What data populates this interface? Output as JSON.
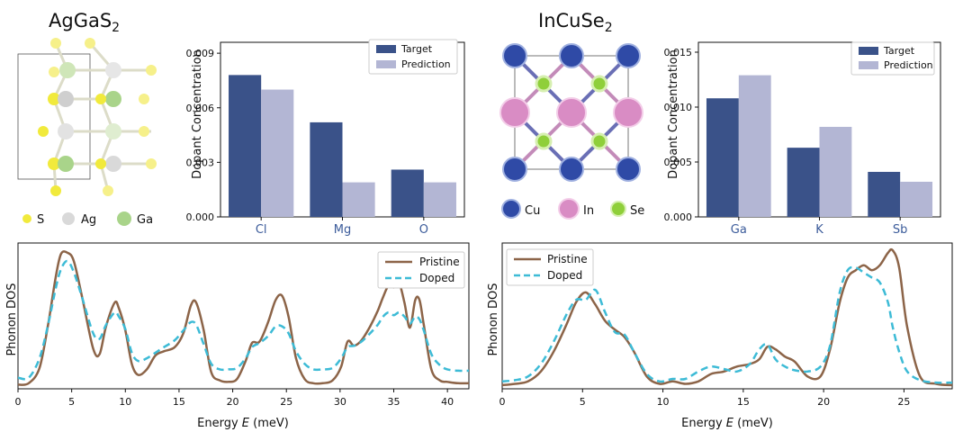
{
  "colors": {
    "target": "#3a5289",
    "prediction": "#b3b6d4",
    "pristine": "#8c6448",
    "doped": "#3dbbd6",
    "category_text": "#3b5b9a",
    "atom_S": "#f1ea3c",
    "atom_Ag": "#d9d9d9",
    "atom_Ga": "#a9d48a",
    "atom_Cu": "#2f4aa6",
    "atom_In": "#d98cc4",
    "atom_Se": "#8fcf3a"
  },
  "structures": [
    {
      "title": "AgGaS",
      "title_sub": "2",
      "legend": [
        {
          "label": "S",
          "icon": "sulfur-atom-icon",
          "color": "#f1ea3c"
        },
        {
          "label": "Ag",
          "icon": "silver-atom-icon",
          "color": "#d9d9d9"
        },
        {
          "label": "Ga",
          "icon": "gallium-atom-icon",
          "color": "#a9d48a"
        }
      ]
    },
    {
      "title": "InCuSe",
      "title_sub": "2",
      "legend": [
        {
          "label": "Cu",
          "icon": "copper-atom-icon",
          "color": "#2f4aa6"
        },
        {
          "label": "In",
          "icon": "indium-atom-icon",
          "color": "#d98cc4"
        },
        {
          "label": "Se",
          "icon": "selenium-atom-icon",
          "color": "#8fcf3a"
        }
      ]
    }
  ],
  "chart_data": [
    {
      "type": "bar",
      "categories": [
        "Cl",
        "Mg",
        "O"
      ],
      "series": [
        {
          "name": "Target",
          "values": [
            0.0078,
            0.0052,
            0.0026
          ]
        },
        {
          "name": "Prediction",
          "values": [
            0.007,
            0.0019,
            0.0019
          ]
        }
      ],
      "ylabel": "Dopant Concentration",
      "ylim": [
        0,
        0.0096
      ],
      "yticks": [
        0,
        0.003,
        0.006,
        0.009
      ],
      "ytick_labels": [
        "0.000",
        "0.003",
        "0.006",
        "0.009"
      ],
      "legend_placement": "top-right"
    },
    {
      "type": "bar",
      "categories": [
        "Ga",
        "K",
        "Sb"
      ],
      "series": [
        {
          "name": "Target",
          "values": [
            0.0108,
            0.0063,
            0.0041
          ]
        },
        {
          "name": "Prediction",
          "values": [
            0.0129,
            0.0082,
            0.0032
          ]
        }
      ],
      "ylabel": "Dopant Concentration",
      "ylim": [
        0,
        0.0159
      ],
      "yticks": [
        0,
        0.005,
        0.01,
        0.015
      ],
      "ytick_labels": [
        "0.000",
        "0.005",
        "0.010",
        "0.015"
      ],
      "legend_placement": "top-right"
    },
    {
      "type": "line",
      "xlabel": "Energy E (meV)",
      "xlabel_parts": [
        "Energy ",
        "E",
        " (meV)"
      ],
      "ylabel": "Phonon DOS",
      "xlim": [
        0,
        42
      ],
      "ylim": [
        0,
        1
      ],
      "xticks": [
        0,
        5,
        10,
        15,
        20,
        25,
        30,
        35,
        40
      ],
      "legend_placement": "top-right",
      "series": [
        {
          "name": "Pristine",
          "x": [
            0,
            1,
            2,
            2.8,
            3.5,
            4,
            4.6,
            5.2,
            6,
            7,
            7.6,
            8.2,
            9,
            9.4,
            10,
            10.6,
            11.2,
            12,
            12.8,
            13.6,
            14.6,
            15.4,
            16.1,
            16.6,
            17.3,
            18,
            18.8,
            19.6,
            20.4,
            21.2,
            21.8,
            22.5,
            23.3,
            24,
            24.6,
            25.2,
            25.9,
            26.7,
            27.5,
            28.4,
            29.3,
            30.1,
            30.7,
            31.3,
            32,
            32.8,
            33.5,
            34,
            34.5,
            35,
            35.5,
            36,
            36.5,
            37,
            37.4,
            37.8,
            38.5,
            39.3,
            40,
            41,
            42
          ],
          "y": [
            0.03,
            0.04,
            0.15,
            0.46,
            0.8,
            0.97,
            0.98,
            0.92,
            0.65,
            0.29,
            0.25,
            0.45,
            0.62,
            0.58,
            0.42,
            0.18,
            0.1,
            0.14,
            0.24,
            0.27,
            0.3,
            0.4,
            0.6,
            0.62,
            0.42,
            0.12,
            0.06,
            0.05,
            0.07,
            0.2,
            0.33,
            0.34,
            0.48,
            0.64,
            0.67,
            0.52,
            0.22,
            0.07,
            0.04,
            0.04,
            0.06,
            0.16,
            0.34,
            0.31,
            0.35,
            0.45,
            0.56,
            0.66,
            0.74,
            0.73,
            0.76,
            0.62,
            0.44,
            0.64,
            0.64,
            0.46,
            0.14,
            0.06,
            0.05,
            0.04,
            0.04
          ]
        },
        {
          "name": "Doped",
          "x": [
            0,
            1,
            2,
            2.8,
            3.5,
            4,
            4.6,
            5.2,
            6,
            7,
            7.6,
            8.2,
            9,
            9.4,
            10,
            10.6,
            11.2,
            12,
            12.8,
            13.6,
            14.6,
            15.4,
            16.1,
            16.6,
            17.3,
            18,
            18.8,
            19.6,
            20.4,
            21.2,
            21.8,
            22.5,
            23.3,
            24,
            24.6,
            25.2,
            25.9,
            26.7,
            27.5,
            28.4,
            29.3,
            30.1,
            30.7,
            31.3,
            32,
            32.8,
            33.5,
            34,
            34.5,
            35,
            35.5,
            36,
            36.5,
            37,
            37.4,
            37.8,
            38.5,
            39.3,
            40,
            41,
            42
          ],
          "y": [
            0.08,
            0.08,
            0.22,
            0.46,
            0.72,
            0.86,
            0.92,
            0.84,
            0.65,
            0.4,
            0.36,
            0.46,
            0.55,
            0.52,
            0.43,
            0.26,
            0.2,
            0.22,
            0.26,
            0.3,
            0.35,
            0.42,
            0.48,
            0.46,
            0.32,
            0.18,
            0.14,
            0.14,
            0.15,
            0.22,
            0.3,
            0.33,
            0.38,
            0.45,
            0.45,
            0.4,
            0.27,
            0.18,
            0.14,
            0.14,
            0.15,
            0.22,
            0.3,
            0.31,
            0.34,
            0.4,
            0.46,
            0.52,
            0.55,
            0.53,
            0.55,
            0.52,
            0.47,
            0.52,
            0.5,
            0.42,
            0.25,
            0.17,
            0.14,
            0.13,
            0.13
          ]
        }
      ]
    },
    {
      "type": "line",
      "xlabel": "Energy E (meV)",
      "xlabel_parts": [
        "Energy ",
        "E",
        " (meV)"
      ],
      "ylabel": "Phonon DOS",
      "xlim": [
        0,
        28
      ],
      "ylim": [
        0,
        1
      ],
      "xticks": [
        0,
        5,
        10,
        15,
        20,
        25
      ],
      "legend_placement": "top-left",
      "series": [
        {
          "name": "Pristine",
          "x": [
            0,
            0.8,
            1.6,
            2.4,
            3.2,
            4,
            4.6,
            5.2,
            5.8,
            6.4,
            7,
            7.6,
            8.2,
            9,
            9.8,
            10.6,
            11.4,
            12.2,
            13,
            13.8,
            14.6,
            15.4,
            16,
            16.5,
            17,
            17.6,
            18.2,
            19,
            19.8,
            20.4,
            21,
            21.5,
            22,
            22.5,
            23,
            23.5,
            24,
            24.3,
            24.7,
            25.2,
            26,
            27,
            28
          ],
          "y": [
            0.03,
            0.04,
            0.06,
            0.14,
            0.3,
            0.52,
            0.7,
            0.78,
            0.68,
            0.55,
            0.48,
            0.42,
            0.3,
            0.1,
            0.04,
            0.06,
            0.04,
            0.06,
            0.12,
            0.14,
            0.18,
            0.2,
            0.24,
            0.34,
            0.32,
            0.26,
            0.22,
            0.1,
            0.1,
            0.32,
            0.7,
            0.9,
            0.96,
            1.0,
            0.96,
            1.0,
            1.1,
            1.12,
            0.98,
            0.5,
            0.1,
            0.04,
            0.03
          ]
        },
        {
          "name": "Doped",
          "x": [
            0,
            0.8,
            1.6,
            2.4,
            3.2,
            4,
            4.6,
            5.2,
            5.8,
            6.4,
            7,
            7.6,
            8.2,
            9,
            9.8,
            10.6,
            11.4,
            12.2,
            13,
            13.8,
            14.6,
            15.4,
            16,
            16.5,
            17,
            17.6,
            18.2,
            19,
            19.8,
            20.4,
            21,
            21.5,
            22,
            22.5,
            23,
            23.5,
            24,
            24.3,
            24.7,
            25.2,
            26,
            27,
            28
          ],
          "y": [
            0.06,
            0.07,
            0.1,
            0.2,
            0.38,
            0.6,
            0.72,
            0.72,
            0.8,
            0.62,
            0.46,
            0.44,
            0.3,
            0.12,
            0.06,
            0.08,
            0.08,
            0.14,
            0.18,
            0.16,
            0.14,
            0.2,
            0.32,
            0.36,
            0.24,
            0.18,
            0.15,
            0.14,
            0.18,
            0.35,
            0.78,
            0.96,
            0.98,
            0.94,
            0.9,
            0.86,
            0.7,
            0.5,
            0.3,
            0.14,
            0.07,
            0.05,
            0.05
          ]
        }
      ]
    }
  ]
}
